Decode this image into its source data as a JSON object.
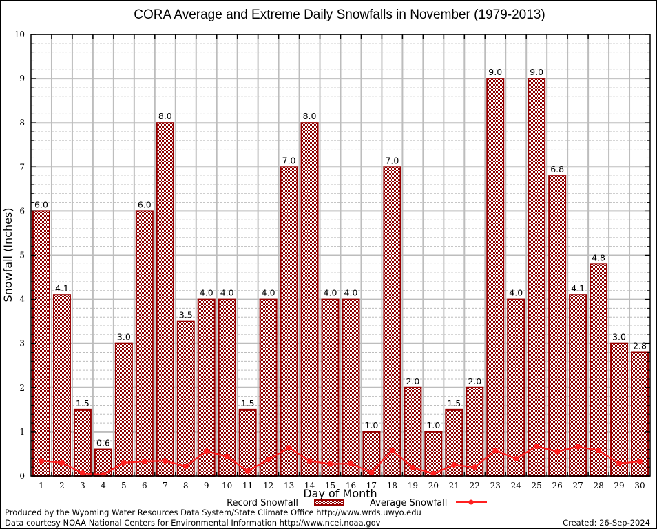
{
  "chart_data": {
    "type": "bar",
    "title": "CORA Average and Extreme Daily Snowfalls in November (1979-2013)",
    "xlabel": "Day of Month",
    "ylabel": "Snowfall (Inches)",
    "ylim": [
      0,
      10
    ],
    "yticks": [
      "0",
      "1",
      "2",
      "3",
      "4",
      "5",
      "6",
      "7",
      "8",
      "9",
      "10"
    ],
    "grid": true,
    "categories": [
      "1",
      "2",
      "3",
      "4",
      "5",
      "6",
      "7",
      "8",
      "9",
      "10",
      "11",
      "12",
      "13",
      "14",
      "15",
      "16",
      "17",
      "18",
      "19",
      "20",
      "21",
      "22",
      "23",
      "24",
      "25",
      "26",
      "27",
      "28",
      "29",
      "30"
    ],
    "series": [
      {
        "name": "Record Snowfall",
        "type": "bar",
        "color": "#990000",
        "values": [
          6.0,
          4.1,
          1.5,
          0.6,
          3.0,
          6.0,
          8.0,
          3.5,
          4.0,
          4.0,
          1.5,
          4.0,
          7.0,
          8.0,
          4.0,
          4.0,
          1.0,
          7.0,
          2.0,
          1.0,
          1.5,
          2.0,
          9.0,
          4.0,
          9.0,
          6.8,
          4.1,
          4.8,
          3.0,
          2.8
        ],
        "labels": [
          "6.0",
          "4.1",
          "1.5",
          "0.6",
          "3.0",
          "6.0",
          "8.0",
          "3.5",
          "4.0",
          "4.0",
          "1.5",
          "4.0",
          "7.0",
          "8.0",
          "4.0",
          "4.0",
          "1.0",
          "7.0",
          "2.0",
          "1.0",
          "1.5",
          "2.0",
          "9.0",
          "4.0",
          "9.0",
          "6.8",
          "4.1",
          "4.8",
          "3.0",
          "2.8"
        ]
      },
      {
        "name": "Average Snowfall",
        "type": "line",
        "color": "#ff2020",
        "values": [
          0.34,
          0.3,
          0.06,
          0.03,
          0.3,
          0.33,
          0.34,
          0.22,
          0.56,
          0.44,
          0.11,
          0.37,
          0.64,
          0.34,
          0.27,
          0.28,
          0.08,
          0.58,
          0.19,
          0.05,
          0.25,
          0.2,
          0.58,
          0.39,
          0.67,
          0.55,
          0.66,
          0.58,
          0.28,
          0.33
        ]
      }
    ],
    "legend": {
      "placement": "bottom-center",
      "entries": [
        "Record Snowfall",
        "Average Snowfall"
      ]
    }
  },
  "footer": {
    "line1": "Produced by the Wyoming Water Resources Data System/State Climate Office http://www.wrds.uwyo.edu",
    "line2": "Data courtesy NOAA National Centers for Environmental Information http://www.ncei.noaa.gov",
    "created": "Created: 26-Sep-2024"
  }
}
